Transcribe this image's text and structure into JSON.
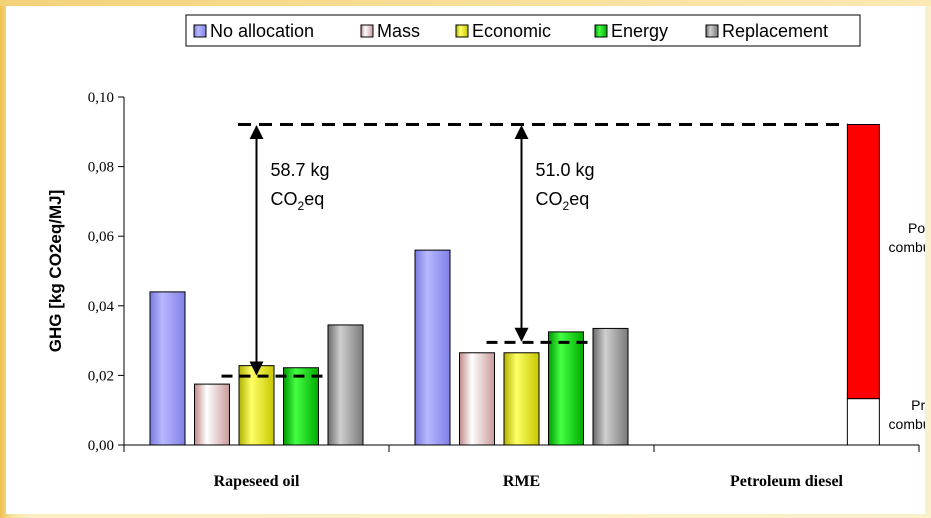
{
  "chart_data": {
    "type": "bar",
    "ylabel": "GHG [kg CO2eq/MJ]",
    "ylim": [
      0,
      0.1
    ],
    "yticks": [
      "0,00",
      "0,02",
      "0,04",
      "0,06",
      "0,08",
      "0,10"
    ],
    "categories": [
      "Rapeseed oil",
      "RME",
      "Petroleum diesel"
    ],
    "series": [
      {
        "name": "No allocation",
        "values": [
          0.044,
          0.056,
          null
        ],
        "color": "#9999ff"
      },
      {
        "name": "Mass",
        "values": [
          0.0175,
          0.0265,
          null
        ],
        "color": "#f3dede"
      },
      {
        "name": "Economic",
        "values": [
          0.0228,
          0.0265,
          null
        ],
        "color": "#ffff00"
      },
      {
        "name": "Energy",
        "values": [
          0.0222,
          0.0325,
          null
        ],
        "color": "#00dd00"
      },
      {
        "name": "Replacement",
        "values": [
          0.0345,
          0.0335,
          null
        ],
        "color": "#999999"
      }
    ],
    "diesel_stack": {
      "pre_combustion": 0.0133,
      "post_combustion": 0.0788,
      "total": 0.0921,
      "pre_label": "Pre-\ncombustion",
      "post_label": "Post-\ncombustion",
      "pre_color": "#ffffff",
      "post_color": "#ff0000"
    },
    "reference_line": 0.0921,
    "annotations": [
      {
        "category": "Rapeseed oil",
        "from": 0.0921,
        "to": 0.0198,
        "text_line1": "58.7 kg",
        "text_line2": "CO",
        "sub": "2",
        "text_after": "eq"
      },
      {
        "category": "RME",
        "from": 0.0921,
        "to": 0.0295,
        "text_line1": "51.0 kg",
        "text_line2": "CO",
        "sub": "2",
        "text_after": "eq"
      }
    ],
    "legend_position": "top-right",
    "grid": false
  }
}
